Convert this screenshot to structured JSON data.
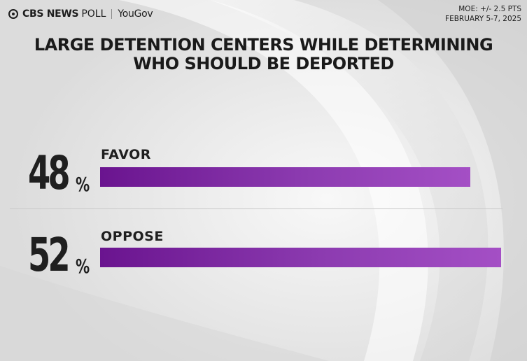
{
  "header": {
    "brand_cbs": "CBS NEWS",
    "brand_poll": "POLL",
    "brand_partner": "YouGov",
    "moe_line": "MOE: +/- 2.5 PTS",
    "date_line": "FEBRUARY 5-7, 2025"
  },
  "chart_data": {
    "type": "bar",
    "orientation": "horizontal",
    "title_lines": [
      "LARGE DETENTION CENTERS WHILE DETERMINING",
      "WHO SHOULD BE DEPORTED"
    ],
    "categories": [
      "FAVOR",
      "OPPOSE"
    ],
    "values": [
      48,
      52
    ],
    "value_labels": [
      "48",
      "52"
    ],
    "unit": "%",
    "bar_color": "#8a35ad",
    "xlim": [
      0,
      52
    ]
  }
}
